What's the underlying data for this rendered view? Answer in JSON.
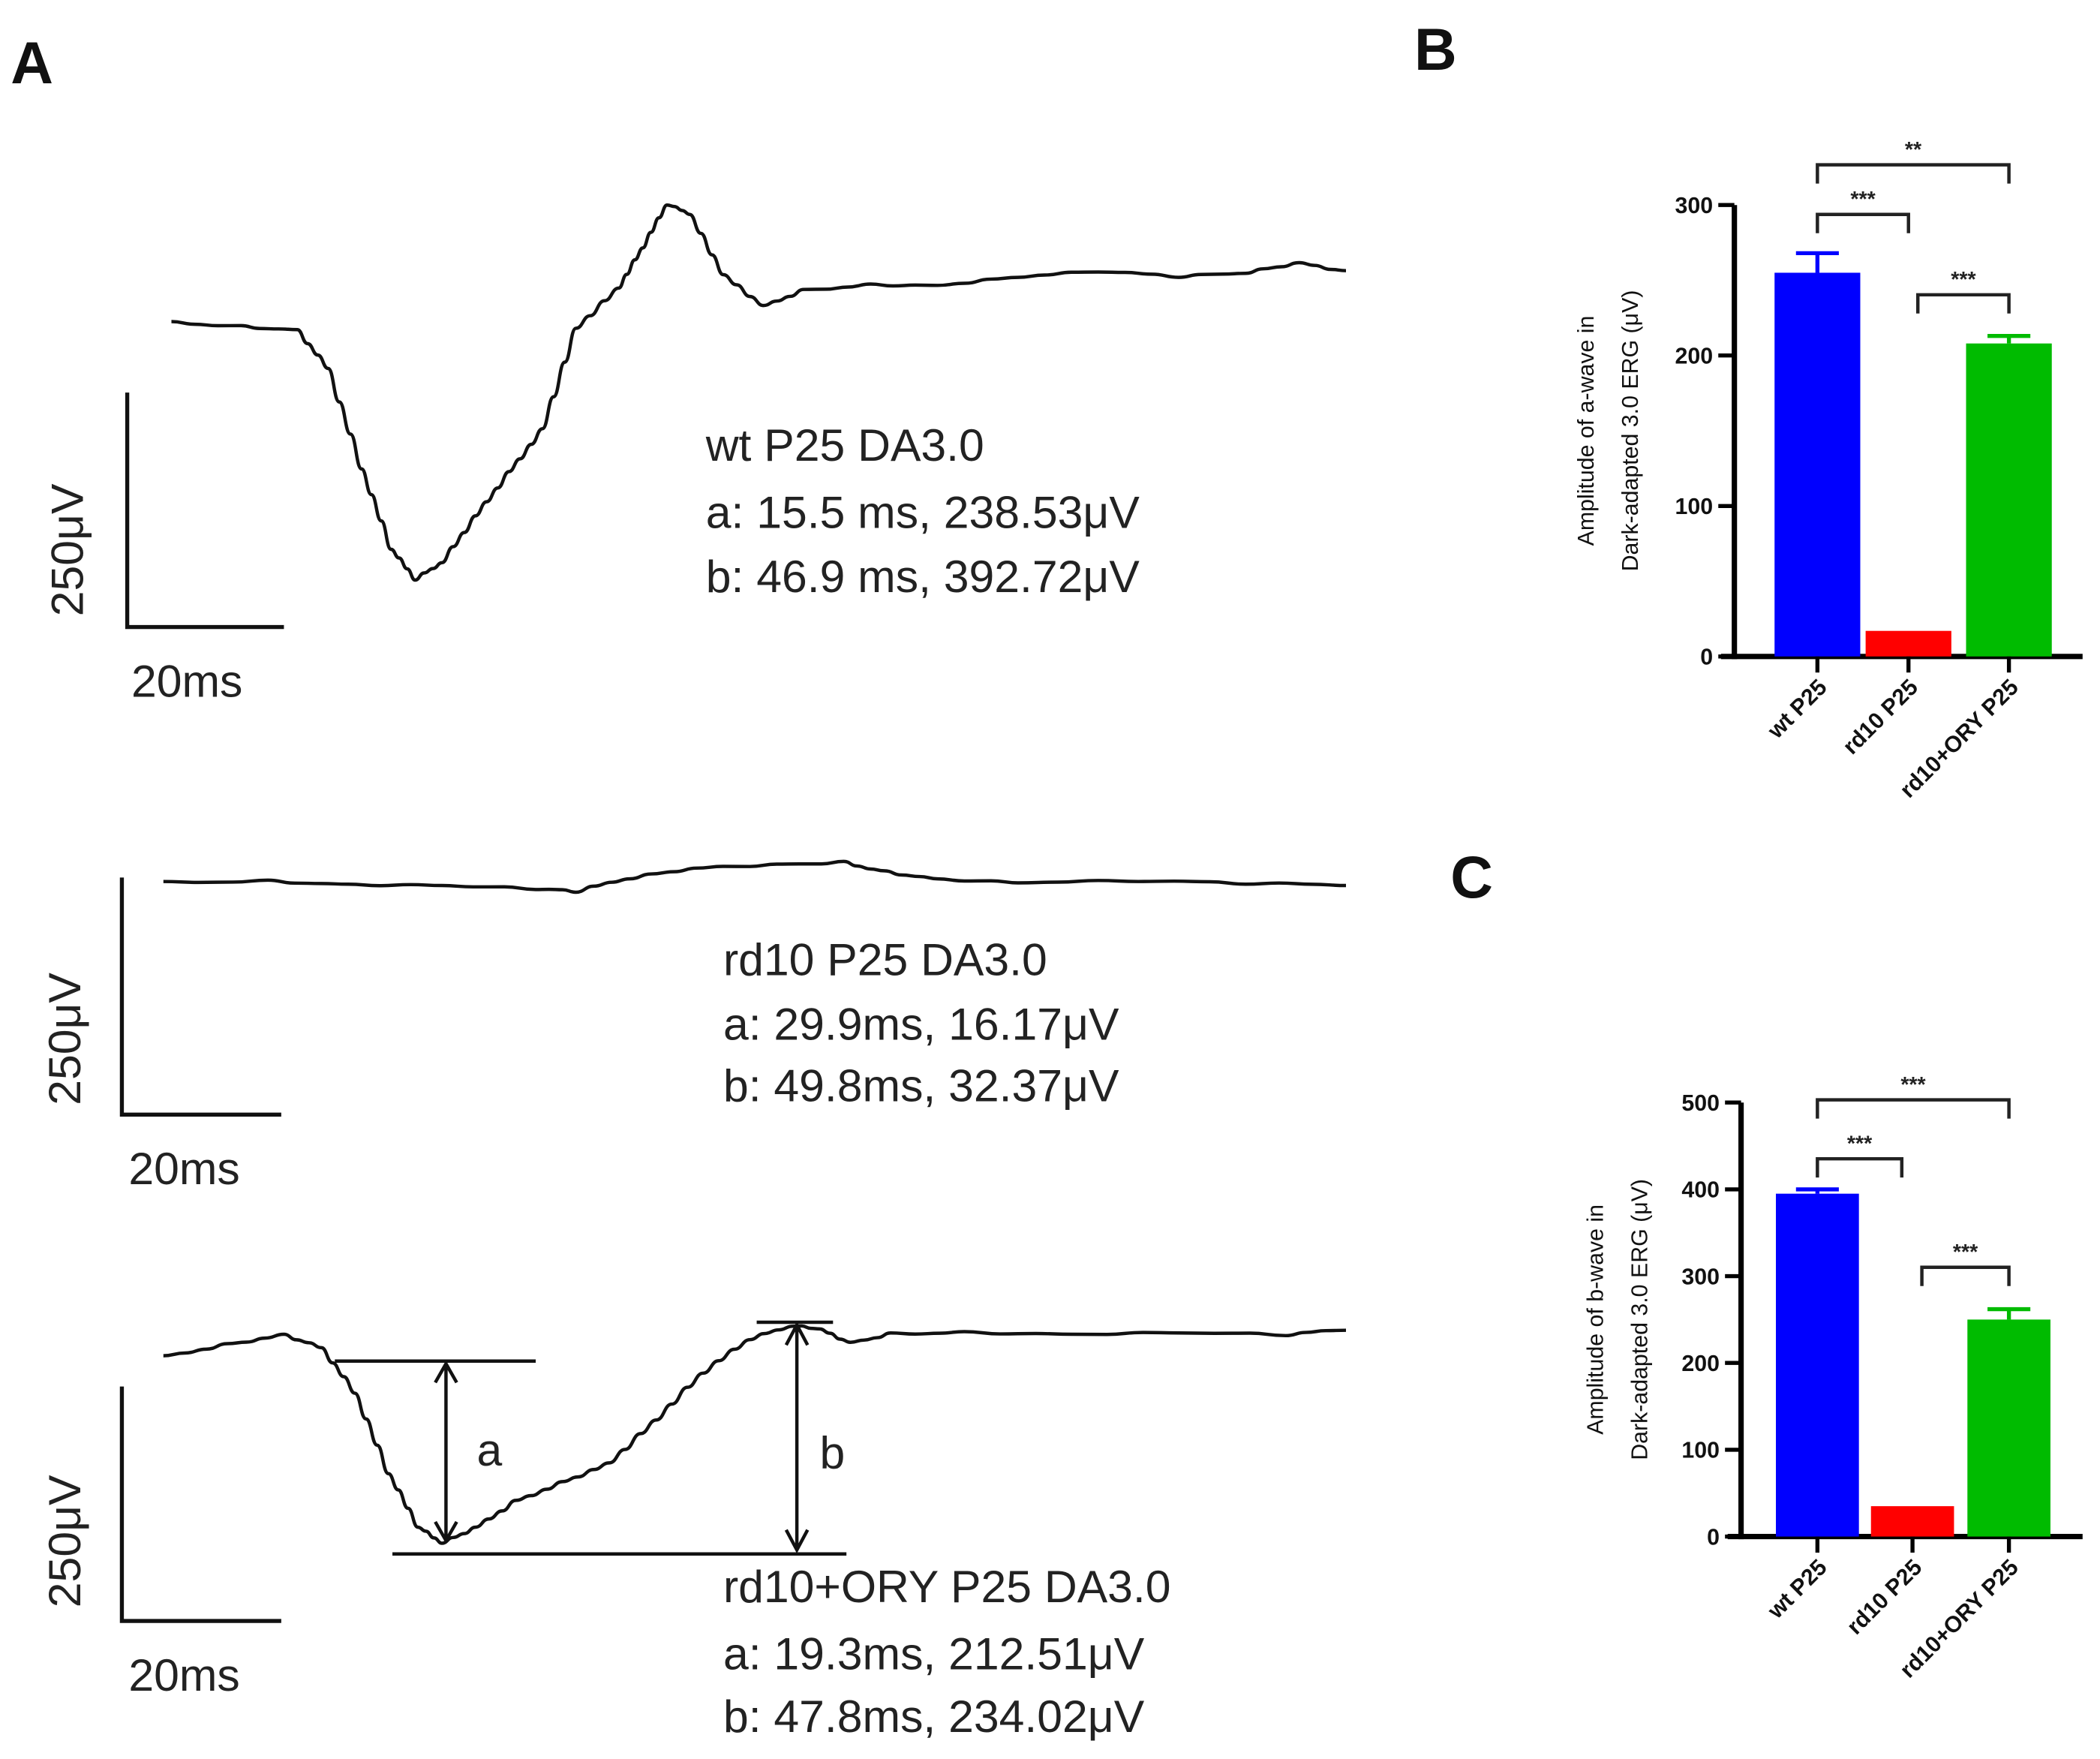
{
  "panels": {
    "A": {
      "label": "A",
      "traces": [
        {
          "title": "wt P25 DA3.0",
          "a": "a: 15.5 ms, 238.53μV",
          "b": "b: 46.9 ms, 392.72μV",
          "scale_v": "250μV",
          "scale_t": "20ms"
        },
        {
          "title": "rd10 P25 DA3.0",
          "a": "a: 29.9ms, 16.17μV",
          "b": "b: 49.8ms, 32.37μV",
          "scale_v": "250μV",
          "scale_t": "20ms"
        },
        {
          "title": "rd10+ORY P25 DA3.0",
          "a": "a: 19.3ms, 212.51μV",
          "b": "b: 47.8ms, 234.02μV",
          "scale_v": "250μV",
          "scale_t": "20ms"
        }
      ],
      "marker_a": "a",
      "marker_b": "b"
    },
    "B": {
      "label": "B"
    },
    "C": {
      "label": "C"
    }
  },
  "chart_data": [
    {
      "type": "bar",
      "panel": "B",
      "categories": [
        "wt P25",
        "rd10 P25",
        "rd10+ORY P25"
      ],
      "values": [
        255,
        17,
        208
      ],
      "error_upper": [
        268,
        17,
        213
      ],
      "colors": [
        "#0000ff",
        "#ff0000",
        "#00bb00"
      ],
      "ylabel": [
        "Amplitude of a-wave in",
        "Dark-adapted 3.0 ERG (μV)"
      ],
      "ylim": [
        0,
        300
      ],
      "yticks": [
        "0",
        "100",
        "200",
        "300"
      ],
      "significance": [
        {
          "from": 0,
          "to": 2,
          "label": "**"
        },
        {
          "from": 0,
          "to": 1,
          "label": "***"
        },
        {
          "from": 1,
          "to": 2,
          "label": "***"
        }
      ]
    },
    {
      "type": "bar",
      "panel": "C",
      "categories": [
        "wt P25",
        "rd10 P25",
        "rd10+ORY P25"
      ],
      "values": [
        395,
        35,
        250
      ],
      "error_upper": [
        400,
        36,
        262
      ],
      "colors": [
        "#0000ff",
        "#ff0000",
        "#00bb00"
      ],
      "ylabel": [
        "Amplitude of b-wave in",
        "Dark-adapted 3.0 ERG (μV)"
      ],
      "ylim": [
        0,
        500
      ],
      "yticks": [
        "0",
        "100",
        "200",
        "300",
        "400",
        "500"
      ],
      "significance": [
        {
          "from": 0,
          "to": 2,
          "label": "***"
        },
        {
          "from": 0,
          "to": 1,
          "label": "***"
        },
        {
          "from": 1,
          "to": 2,
          "label": "***"
        }
      ]
    }
  ]
}
